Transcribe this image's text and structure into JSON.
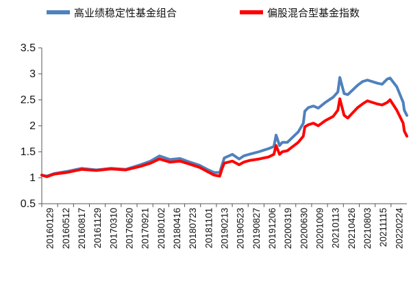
{
  "chart_data": {
    "type": "line",
    "legend_position": "top",
    "grid": false,
    "ylim": [
      0.5,
      3.5
    ],
    "yticks": [
      "0.5",
      "1",
      "1.5",
      "2",
      "2.5",
      "3",
      "3.5"
    ],
    "xticks": [
      "20160129",
      "20160512",
      "20160817",
      "20161129",
      "20170310",
      "20170620",
      "20170921",
      "20180102",
      "20180416",
      "20180723",
      "20181101",
      "20190213",
      "20190523",
      "20190827",
      "20191206",
      "20200319",
      "20200630",
      "20201009",
      "20210113",
      "20210426",
      "20210803",
      "20211115",
      "20220224"
    ],
    "series": [
      {
        "name": "高业绩稳定性基金组合",
        "color": "#4f81bd",
        "x": [
          "2016-01-29",
          "2016-02-29",
          "2016-04-15",
          "2016-06-30",
          "2016-09-30",
          "2016-12-30",
          "2017-03-31",
          "2017-06-30",
          "2017-09-29",
          "2017-11-30",
          "2018-01-24",
          "2018-03-30",
          "2018-05-31",
          "2018-07-31",
          "2018-09-28",
          "2018-11-15",
          "2018-12-28",
          "2019-01-31",
          "2019-02-15",
          "2019-02-28",
          "2019-04-19",
          "2019-05-31",
          "2019-06-28",
          "2019-07-31",
          "2019-09-30",
          "2019-11-29",
          "2019-12-31",
          "2020-01-14",
          "2020-02-04",
          "2020-02-21",
          "2020-03-23",
          "2020-05-29",
          "2020-06-30",
          "2020-07-09",
          "2020-07-31",
          "2020-08-31",
          "2020-09-30",
          "2020-11-13",
          "2020-12-31",
          "2021-01-29",
          "2021-02-10",
          "2021-03-09",
          "2021-03-31",
          "2021-05-31",
          "2021-06-30",
          "2021-07-30",
          "2021-09-30",
          "2021-10-29",
          "2021-11-30",
          "2021-12-17",
          "2022-01-28",
          "2022-03-08",
          "2022-03-15",
          "2022-03-31"
        ],
        "y": [
          1.05,
          1.03,
          1.08,
          1.12,
          1.18,
          1.15,
          1.18,
          1.16,
          1.25,
          1.32,
          1.42,
          1.35,
          1.37,
          1.3,
          1.24,
          1.16,
          1.1,
          1.1,
          1.25,
          1.38,
          1.45,
          1.36,
          1.42,
          1.45,
          1.5,
          1.56,
          1.6,
          1.82,
          1.62,
          1.68,
          1.68,
          1.88,
          2.05,
          2.28,
          2.35,
          2.38,
          2.34,
          2.45,
          2.55,
          2.65,
          2.93,
          2.62,
          2.6,
          2.78,
          2.85,
          2.88,
          2.82,
          2.8,
          2.9,
          2.92,
          2.75,
          2.45,
          2.3,
          2.2
        ]
      },
      {
        "name": "偏股混合型基金指数",
        "color": "#ff0000",
        "x": [
          "2016-01-29",
          "2016-02-29",
          "2016-04-15",
          "2016-06-30",
          "2016-09-30",
          "2016-12-30",
          "2017-03-31",
          "2017-06-30",
          "2017-09-29",
          "2017-11-30",
          "2018-01-24",
          "2018-03-30",
          "2018-05-31",
          "2018-07-31",
          "2018-09-28",
          "2018-11-15",
          "2018-12-28",
          "2019-01-31",
          "2019-02-15",
          "2019-02-28",
          "2019-04-19",
          "2019-05-31",
          "2019-06-28",
          "2019-07-31",
          "2019-09-30",
          "2019-11-29",
          "2019-12-31",
          "2020-01-14",
          "2020-02-04",
          "2020-02-21",
          "2020-03-23",
          "2020-05-29",
          "2020-06-30",
          "2020-07-09",
          "2020-07-31",
          "2020-08-31",
          "2020-09-30",
          "2020-11-13",
          "2020-12-31",
          "2021-01-29",
          "2021-02-10",
          "2021-03-09",
          "2021-03-31",
          "2021-05-31",
          "2021-06-30",
          "2021-07-30",
          "2021-09-30",
          "2021-10-29",
          "2021-11-30",
          "2021-12-17",
          "2022-01-28",
          "2022-03-08",
          "2022-03-15",
          "2022-03-31"
        ],
        "y": [
          1.05,
          1.02,
          1.07,
          1.1,
          1.16,
          1.14,
          1.17,
          1.15,
          1.22,
          1.28,
          1.36,
          1.3,
          1.32,
          1.26,
          1.2,
          1.12,
          1.05,
          1.03,
          1.18,
          1.28,
          1.32,
          1.25,
          1.3,
          1.33,
          1.36,
          1.4,
          1.45,
          1.62,
          1.45,
          1.5,
          1.52,
          1.68,
          1.8,
          1.98,
          2.02,
          2.05,
          2.0,
          2.1,
          2.18,
          2.3,
          2.52,
          2.2,
          2.15,
          2.35,
          2.42,
          2.48,
          2.42,
          2.4,
          2.45,
          2.5,
          2.3,
          2.05,
          1.9,
          1.8
        ]
      }
    ]
  }
}
